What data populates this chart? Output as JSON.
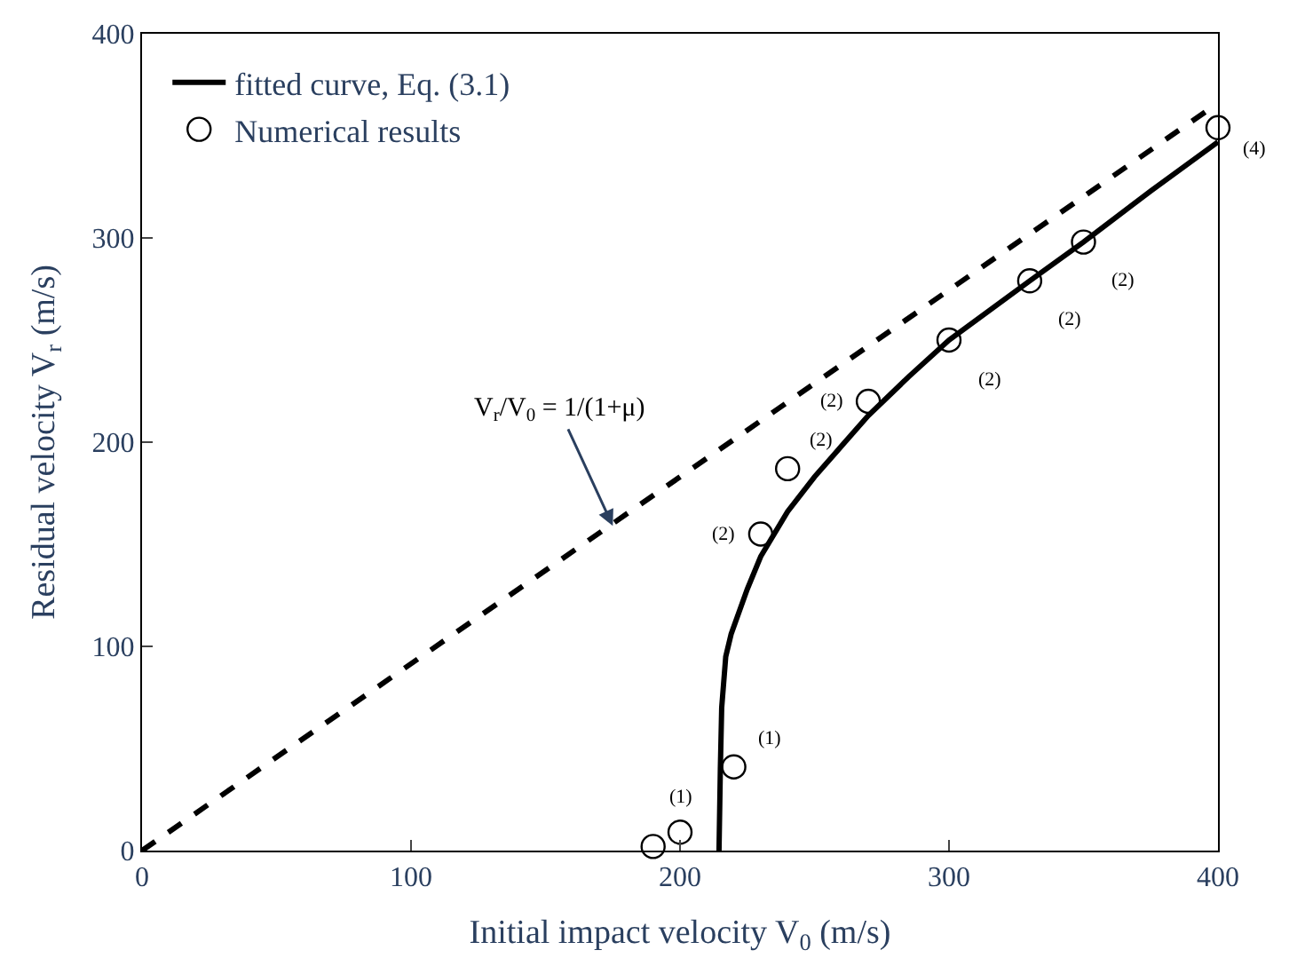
{
  "chart_data": {
    "type": "line",
    "xlabel": "Initial impact velocity V$_{0}$ (m/s)",
    "ylabel": "Residual velocity V$_{r}$ (m/s)",
    "xlim": [
      0,
      400
    ],
    "ylim": [
      0,
      400
    ],
    "xticks": [
      0,
      100,
      200,
      300,
      400
    ],
    "yticks": [
      0,
      100,
      200,
      300,
      400
    ],
    "legend": "top left",
    "series": [
      {
        "name": "fitted curve, Eq. (3.1)",
        "color": "#000000",
        "line_style": "solid",
        "marker": "none",
        "x": [
          214.5,
          215,
          215.5,
          217,
          219,
          225,
          230,
          240,
          250,
          260,
          270,
          285,
          300,
          330,
          350,
          375,
          400
        ],
        "values": [
          0,
          40,
          70,
          95,
          106,
          128,
          144,
          166,
          183,
          198,
          213,
          232,
          250,
          279,
          298,
          323,
          347
        ]
      },
      {
        "name": "Numerical results",
        "type": "scatter",
        "color": "#000000",
        "marker": "circle",
        "x": [
          190,
          200,
          220,
          230,
          240,
          270,
          300,
          330,
          350,
          400
        ],
        "values": [
          2,
          9,
          41,
          155,
          187,
          220,
          250,
          279,
          298,
          354
        ]
      },
      {
        "color": "#000000",
        "line_style": "dashed",
        "marker": "none",
        "x": [
          0,
          400
        ],
        "values": [
          0,
          366
        ]
      }
    ],
    "annotations": [
      {
        "text": "V$_{r}$/V$_{0}$ = 1/(1+μ)",
        "x": 175,
        "y": 159
      },
      {
        "text": "(1)",
        "x": 200,
        "y": 9
      },
      {
        "text": "(1)",
        "x": 220,
        "y": 41
      },
      {
        "text": "(2)",
        "x": 230,
        "y": 155
      },
      {
        "text": "(2)",
        "x": 240,
        "y": 187
      },
      {
        "text": "(2)",
        "x": 270,
        "y": 220
      },
      {
        "text": "(2)",
        "x": 300,
        "y": 250
      },
      {
        "text": "(2)",
        "x": 330,
        "y": 279
      },
      {
        "text": "(2)",
        "x": 350,
        "y": 298
      },
      {
        "text": "(4)",
        "x": 400,
        "y": 354
      }
    ]
  }
}
